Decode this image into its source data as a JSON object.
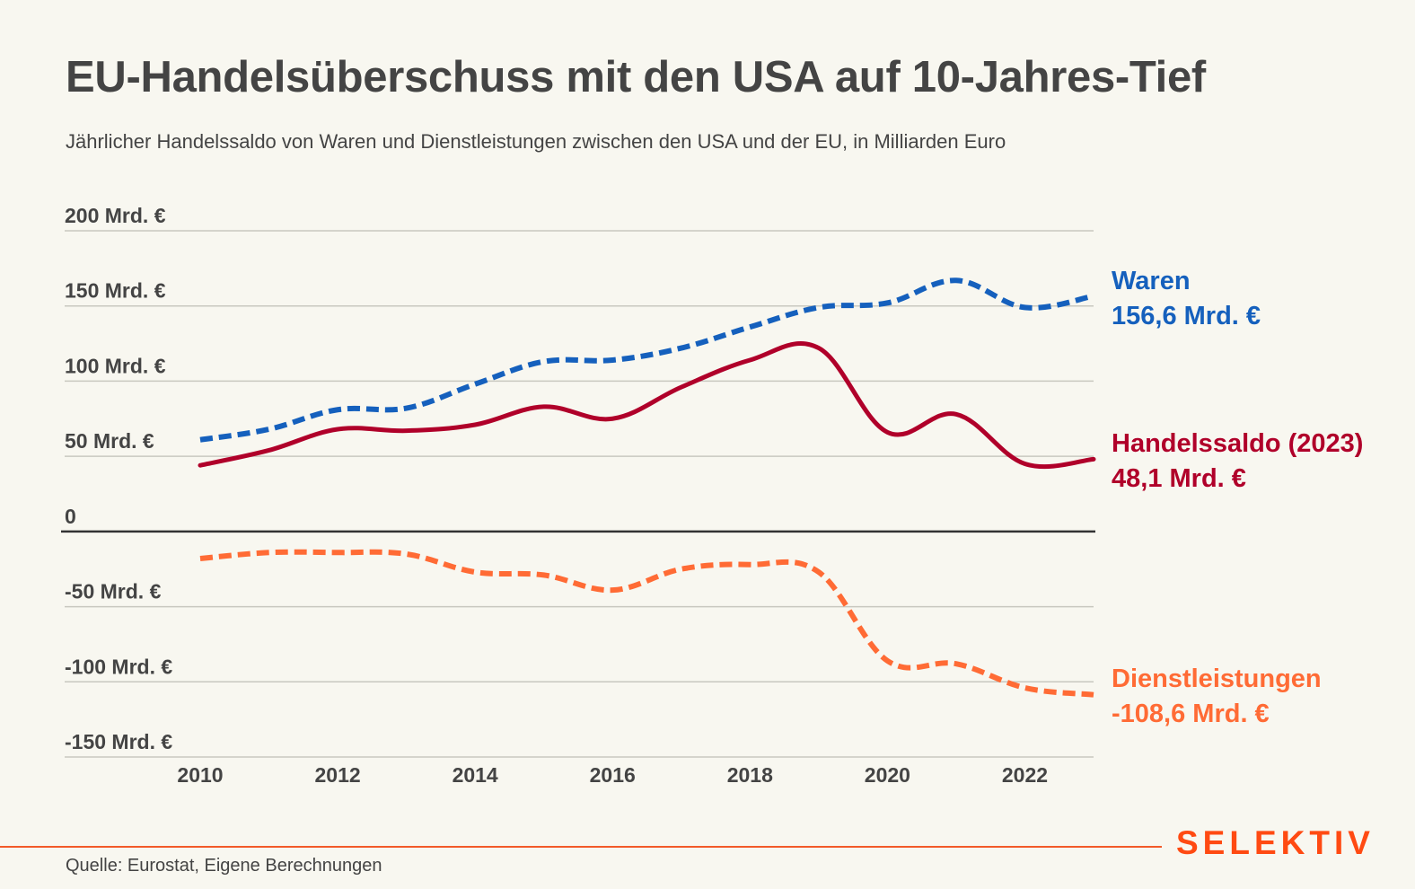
{
  "header": {
    "title": "EU-Handelsüberschuss mit den USA auf 10-Jahres-Tief",
    "subtitle": "Jährlicher Handelssaldo von Waren und Dienstleistungen zwischen den USA und der EU, in Milliarden Euro"
  },
  "footer": {
    "source": "Quelle: Eurostat, Eigene Berechnungen",
    "brand": "SELEKTIV",
    "brand_color": "#ff4a12"
  },
  "chart_data": {
    "type": "line",
    "title": "EU-Handelsüberschuss mit den USA auf 10-Jahres-Tief",
    "subtitle": "Jährlicher Handelssaldo von Waren und Dienstleistungen zwischen den USA und der EU, in Milliarden Euro",
    "xlabel": "",
    "ylabel": "",
    "x": [
      2010,
      2011,
      2012,
      2013,
      2014,
      2015,
      2016,
      2017,
      2018,
      2019,
      2020,
      2021,
      2022,
      2023
    ],
    "xlim": [
      2010,
      2023
    ],
    "ylim": [
      -150,
      200
    ],
    "grid": true,
    "yticks": [
      200,
      150,
      100,
      50,
      0,
      -50,
      -100,
      -150
    ],
    "ytick_labels": [
      "200 Mrd. €",
      "150 Mrd. €",
      "100 Mrd. €",
      "50 Mrd. €",
      "0",
      "-50 Mrd. €",
      "-100 Mrd. €",
      "-150 Mrd. €"
    ],
    "xticks": [
      2010,
      2012,
      2014,
      2016,
      2018,
      2020,
      2022
    ],
    "xtick_labels": [
      "2010",
      "2012",
      "2014",
      "2016",
      "2018",
      "2020",
      "2022"
    ],
    "legend": "inline-right",
    "series": [
      {
        "name": "Waren",
        "end_label": "Waren",
        "end_value_label": "156,6 Mrd. €",
        "color": "#1560bd",
        "style": "dashed",
        "values": [
          61,
          68,
          81,
          82,
          98,
          113,
          114,
          122,
          136,
          149,
          152,
          167,
          149,
          156.6
        ]
      },
      {
        "name": "Handelssaldo",
        "end_label": "Handelssaldo (2023)",
        "end_value_label": "48,1 Mrd. €",
        "color": "#b0002a",
        "style": "solid",
        "values": [
          44,
          54,
          68,
          67,
          71,
          83,
          75,
          96,
          114,
          122,
          66,
          78,
          45,
          48.1
        ]
      },
      {
        "name": "Dienstleistungen",
        "end_label": "Dienstleistungen",
        "end_value_label": "-108,6 Mrd. €",
        "color": "#ff6b35",
        "style": "dashed",
        "values": [
          -18,
          -14,
          -14,
          -15,
          -27,
          -29,
          -39,
          -25,
          -22,
          -27,
          -86,
          -88,
          -104,
          -108.6
        ]
      }
    ]
  }
}
